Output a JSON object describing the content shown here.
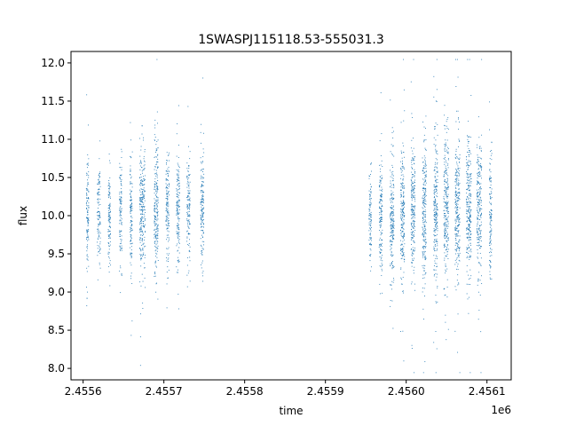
{
  "chart_data": {
    "type": "scatter",
    "title": "1SWASPJ115118.53-555031.3",
    "xlabel": "time",
    "ylabel": "flux",
    "x_offset_label": "1e6",
    "xlim": [
      2455585,
      2456130
    ],
    "ylim": [
      7.85,
      12.15
    ],
    "x_ticks": [
      2455600,
      2455700,
      2455800,
      2455900,
      2456000,
      2456100
    ],
    "x_tick_labels": [
      "2.4556",
      "2.4557",
      "2.4558",
      "2.4559",
      "2.4560",
      "2.4561"
    ],
    "y_ticks": [
      8.0,
      8.5,
      9.0,
      9.5,
      10.0,
      10.5,
      11.0,
      11.5,
      12.0
    ],
    "y_tick_labels": [
      "8.0",
      "8.5",
      "9.0",
      "9.5",
      "10.0",
      "10.5",
      "11.0",
      "11.5",
      "12.0"
    ],
    "grid": false,
    "marker_color": "#1f77b4",
    "series": [
      {
        "clusters": [
          {
            "x": 2455605,
            "width": 3,
            "n": 120,
            "center": 10.05,
            "spread": 0.35
          },
          {
            "x": 2455619,
            "width": 4,
            "n": 110,
            "center": 10.0,
            "spread": 0.35
          },
          {
            "x": 2455632,
            "width": 3,
            "n": 110,
            "center": 10.0,
            "spread": 0.35
          },
          {
            "x": 2455646,
            "width": 3,
            "n": 110,
            "center": 10.05,
            "spread": 0.35
          },
          {
            "x": 2455659,
            "width": 3,
            "n": 120,
            "center": 10.0,
            "spread": 0.38
          },
          {
            "x": 2455673,
            "width": 7,
            "n": 260,
            "center": 10.1,
            "spread": 0.4
          },
          {
            "x": 2455690,
            "width": 5,
            "n": 220,
            "center": 10.05,
            "spread": 0.45
          },
          {
            "x": 2455704,
            "width": 4,
            "n": 140,
            "center": 10.1,
            "spread": 0.4
          },
          {
            "x": 2455717,
            "width": 4,
            "n": 150,
            "center": 10.1,
            "spread": 0.38
          },
          {
            "x": 2455730,
            "width": 4,
            "n": 130,
            "center": 10.05,
            "spread": 0.4
          },
          {
            "x": 2455747,
            "width": 4,
            "n": 160,
            "center": 10.1,
            "spread": 0.4
          },
          {
            "x": 2455955,
            "width": 3,
            "n": 100,
            "center": 9.95,
            "spread": 0.3
          },
          {
            "x": 2455968,
            "width": 4,
            "n": 150,
            "center": 10.0,
            "spread": 0.38
          },
          {
            "x": 2455982,
            "width": 5,
            "n": 200,
            "center": 10.0,
            "spread": 0.4
          },
          {
            "x": 2455995,
            "width": 5,
            "n": 220,
            "center": 10.0,
            "spread": 0.45
          },
          {
            "x": 2456008,
            "width": 5,
            "n": 220,
            "center": 10.05,
            "spread": 0.45
          },
          {
            "x": 2456022,
            "width": 5,
            "n": 230,
            "center": 10.05,
            "spread": 0.45
          },
          {
            "x": 2456036,
            "width": 5,
            "n": 230,
            "center": 10.05,
            "spread": 0.5
          },
          {
            "x": 2456049,
            "width": 6,
            "n": 260,
            "center": 10.1,
            "spread": 0.5
          },
          {
            "x": 2456063,
            "width": 6,
            "n": 260,
            "center": 10.1,
            "spread": 0.5
          },
          {
            "x": 2456077,
            "width": 6,
            "n": 260,
            "center": 10.1,
            "spread": 0.5
          },
          {
            "x": 2456090,
            "width": 6,
            "n": 230,
            "center": 10.1,
            "spread": 0.45
          },
          {
            "x": 2456104,
            "width": 3,
            "n": 120,
            "center": 10.05,
            "spread": 0.4
          }
        ]
      }
    ]
  }
}
